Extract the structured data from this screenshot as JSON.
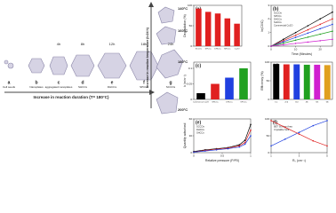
{
  "diagram": {
    "stages": [
      {
        "letter": "a",
        "time": null,
        "name": "Cell seeds"
      },
      {
        "letter": "b",
        "time": null,
        "name": "Nanoplates"
      },
      {
        "letter": "c",
        "time": "4h",
        "name": "aggregated nanoplates"
      },
      {
        "letter": "d",
        "time": "8h",
        "name": "SHCCs"
      },
      {
        "letter": "e",
        "time": "12h",
        "name": "DHCCs"
      },
      {
        "letter": "f",
        "time": "18h",
        "name": "SPCCs"
      },
      {
        "letter": "g",
        "time": "24h",
        "name": "SCCOs"
      }
    ],
    "duration_arrow": "Increase in reaction duration (T= 180°C)",
    "temperature_arrow": "Increase in reaction temperature (t=24 h)",
    "temperatures": [
      "140°C",
      "160°C",
      "180°C",
      "200°C"
    ]
  },
  "chart_data": [
    {
      "type": "bar",
      "label": "(a)",
      "y_label": "Degradation (%)",
      "categories": [
        "SCCOs",
        "SPCCs",
        "DHCCs",
        "SHCCs",
        "Cu2O"
      ],
      "values": [
        92,
        84,
        80,
        68,
        55
      ],
      "color": "#e02020",
      "ylim": [
        0,
        100
      ],
      "yticks": [
        0,
        50,
        100
      ]
    },
    {
      "type": "line",
      "label": "(b)",
      "x_label": "Time (Minutes)",
      "y_label": "ln(C0/C)",
      "x": [
        0,
        5,
        10,
        15,
        20,
        25
      ],
      "xlim": [
        0,
        25
      ],
      "ylim": [
        0,
        3
      ],
      "yticks": [
        0,
        1,
        2,
        3
      ],
      "xticks": [
        0,
        10,
        20
      ],
      "series": [
        {
          "name": "SCCOs",
          "color": "#000000",
          "values": [
            0,
            0.5,
            1.0,
            1.5,
            2.0,
            2.5
          ]
        },
        {
          "name": "SPCCs",
          "color": "#e02020",
          "values": [
            0,
            0.4,
            0.8,
            1.2,
            1.6,
            2.0
          ]
        },
        {
          "name": "DHCCs",
          "color": "#2040e0",
          "values": [
            0,
            0.32,
            0.64,
            0.96,
            1.28,
            1.6
          ]
        },
        {
          "name": "SHCCs",
          "color": "#20a020",
          "values": [
            0,
            0.22,
            0.44,
            0.66,
            0.88,
            1.1
          ]
        },
        {
          "name": "Commercial Cu2O",
          "color": "#d020d0",
          "values": [
            0,
            0.1,
            0.2,
            0.3,
            0.4,
            0.5
          ]
        }
      ]
    },
    {
      "type": "bar",
      "label": "(c)",
      "y_label": "k (min⁻¹)",
      "categories": [
        "Commercial Cu2O",
        "SHCCs",
        "DHCCs",
        "SPCCs"
      ],
      "values": [
        0.02,
        0.05,
        0.07,
        0.1
      ],
      "colors": [
        "#000000",
        "#e02020",
        "#2040e0",
        "#20a020"
      ],
      "ylim": [
        0,
        0.12
      ],
      "yticks": [
        0,
        0.05,
        0.1
      ]
    },
    {
      "type": "bar",
      "label": "(d)",
      "y_label": "Efficiency (%)",
      "categories": [
        "1st",
        "2nd",
        "3rd",
        "4th",
        "5th",
        "6th"
      ],
      "values": [
        95,
        94,
        94,
        93,
        93,
        92
      ],
      "colors": [
        "#000000",
        "#e02020",
        "#2040e0",
        "#20a020",
        "#d020d0",
        "#e0a020"
      ],
      "ylim": [
        0,
        100
      ],
      "yticks": [
        0,
        50,
        100
      ]
    },
    {
      "type": "line",
      "label": "(e)",
      "x_label": "Relative pressure (P/P0)",
      "y_label": "Quantity adsorbed",
      "x": [
        0,
        0.2,
        0.4,
        0.6,
        0.8,
        0.9,
        1.0
      ],
      "xlim": [
        0,
        1
      ],
      "ylim": [
        0,
        60
      ],
      "yticks": [
        0,
        30,
        60
      ],
      "xticks": [
        0,
        0.5,
        1
      ],
      "series": [
        {
          "name": "SCCOs",
          "color": "#000000",
          "values": [
            2,
            5,
            7,
            9,
            14,
            22,
            50
          ]
        },
        {
          "name": "DHCCs",
          "color": "#e02020",
          "values": [
            1,
            4,
            6,
            8,
            12,
            18,
            40
          ]
        },
        {
          "name": "SHCCs",
          "color": "#2040e0",
          "values": [
            1,
            3,
            5,
            7,
            10,
            15,
            30
          ]
        }
      ]
    },
    {
      "type": "line",
      "label": "(f)",
      "x_label": "R₀ (cm⁻¹)",
      "x": [
        1,
        2,
        3,
        4,
        5
      ],
      "xlim": [
        1,
        5
      ],
      "ylim": [
        0,
        100
      ],
      "yticks": [
        0,
        50,
        100
      ],
      "xticks": [
        1,
        3,
        5
      ],
      "series": [
        {
          "name": "BET Surface Area",
          "color": "#2040e0",
          "values": [
            20,
            40,
            60,
            80,
            95
          ]
        },
        {
          "name": "Crystallite Size",
          "color": "#e02020",
          "values": [
            95,
            75,
            55,
            35,
            20
          ]
        }
      ]
    }
  ]
}
